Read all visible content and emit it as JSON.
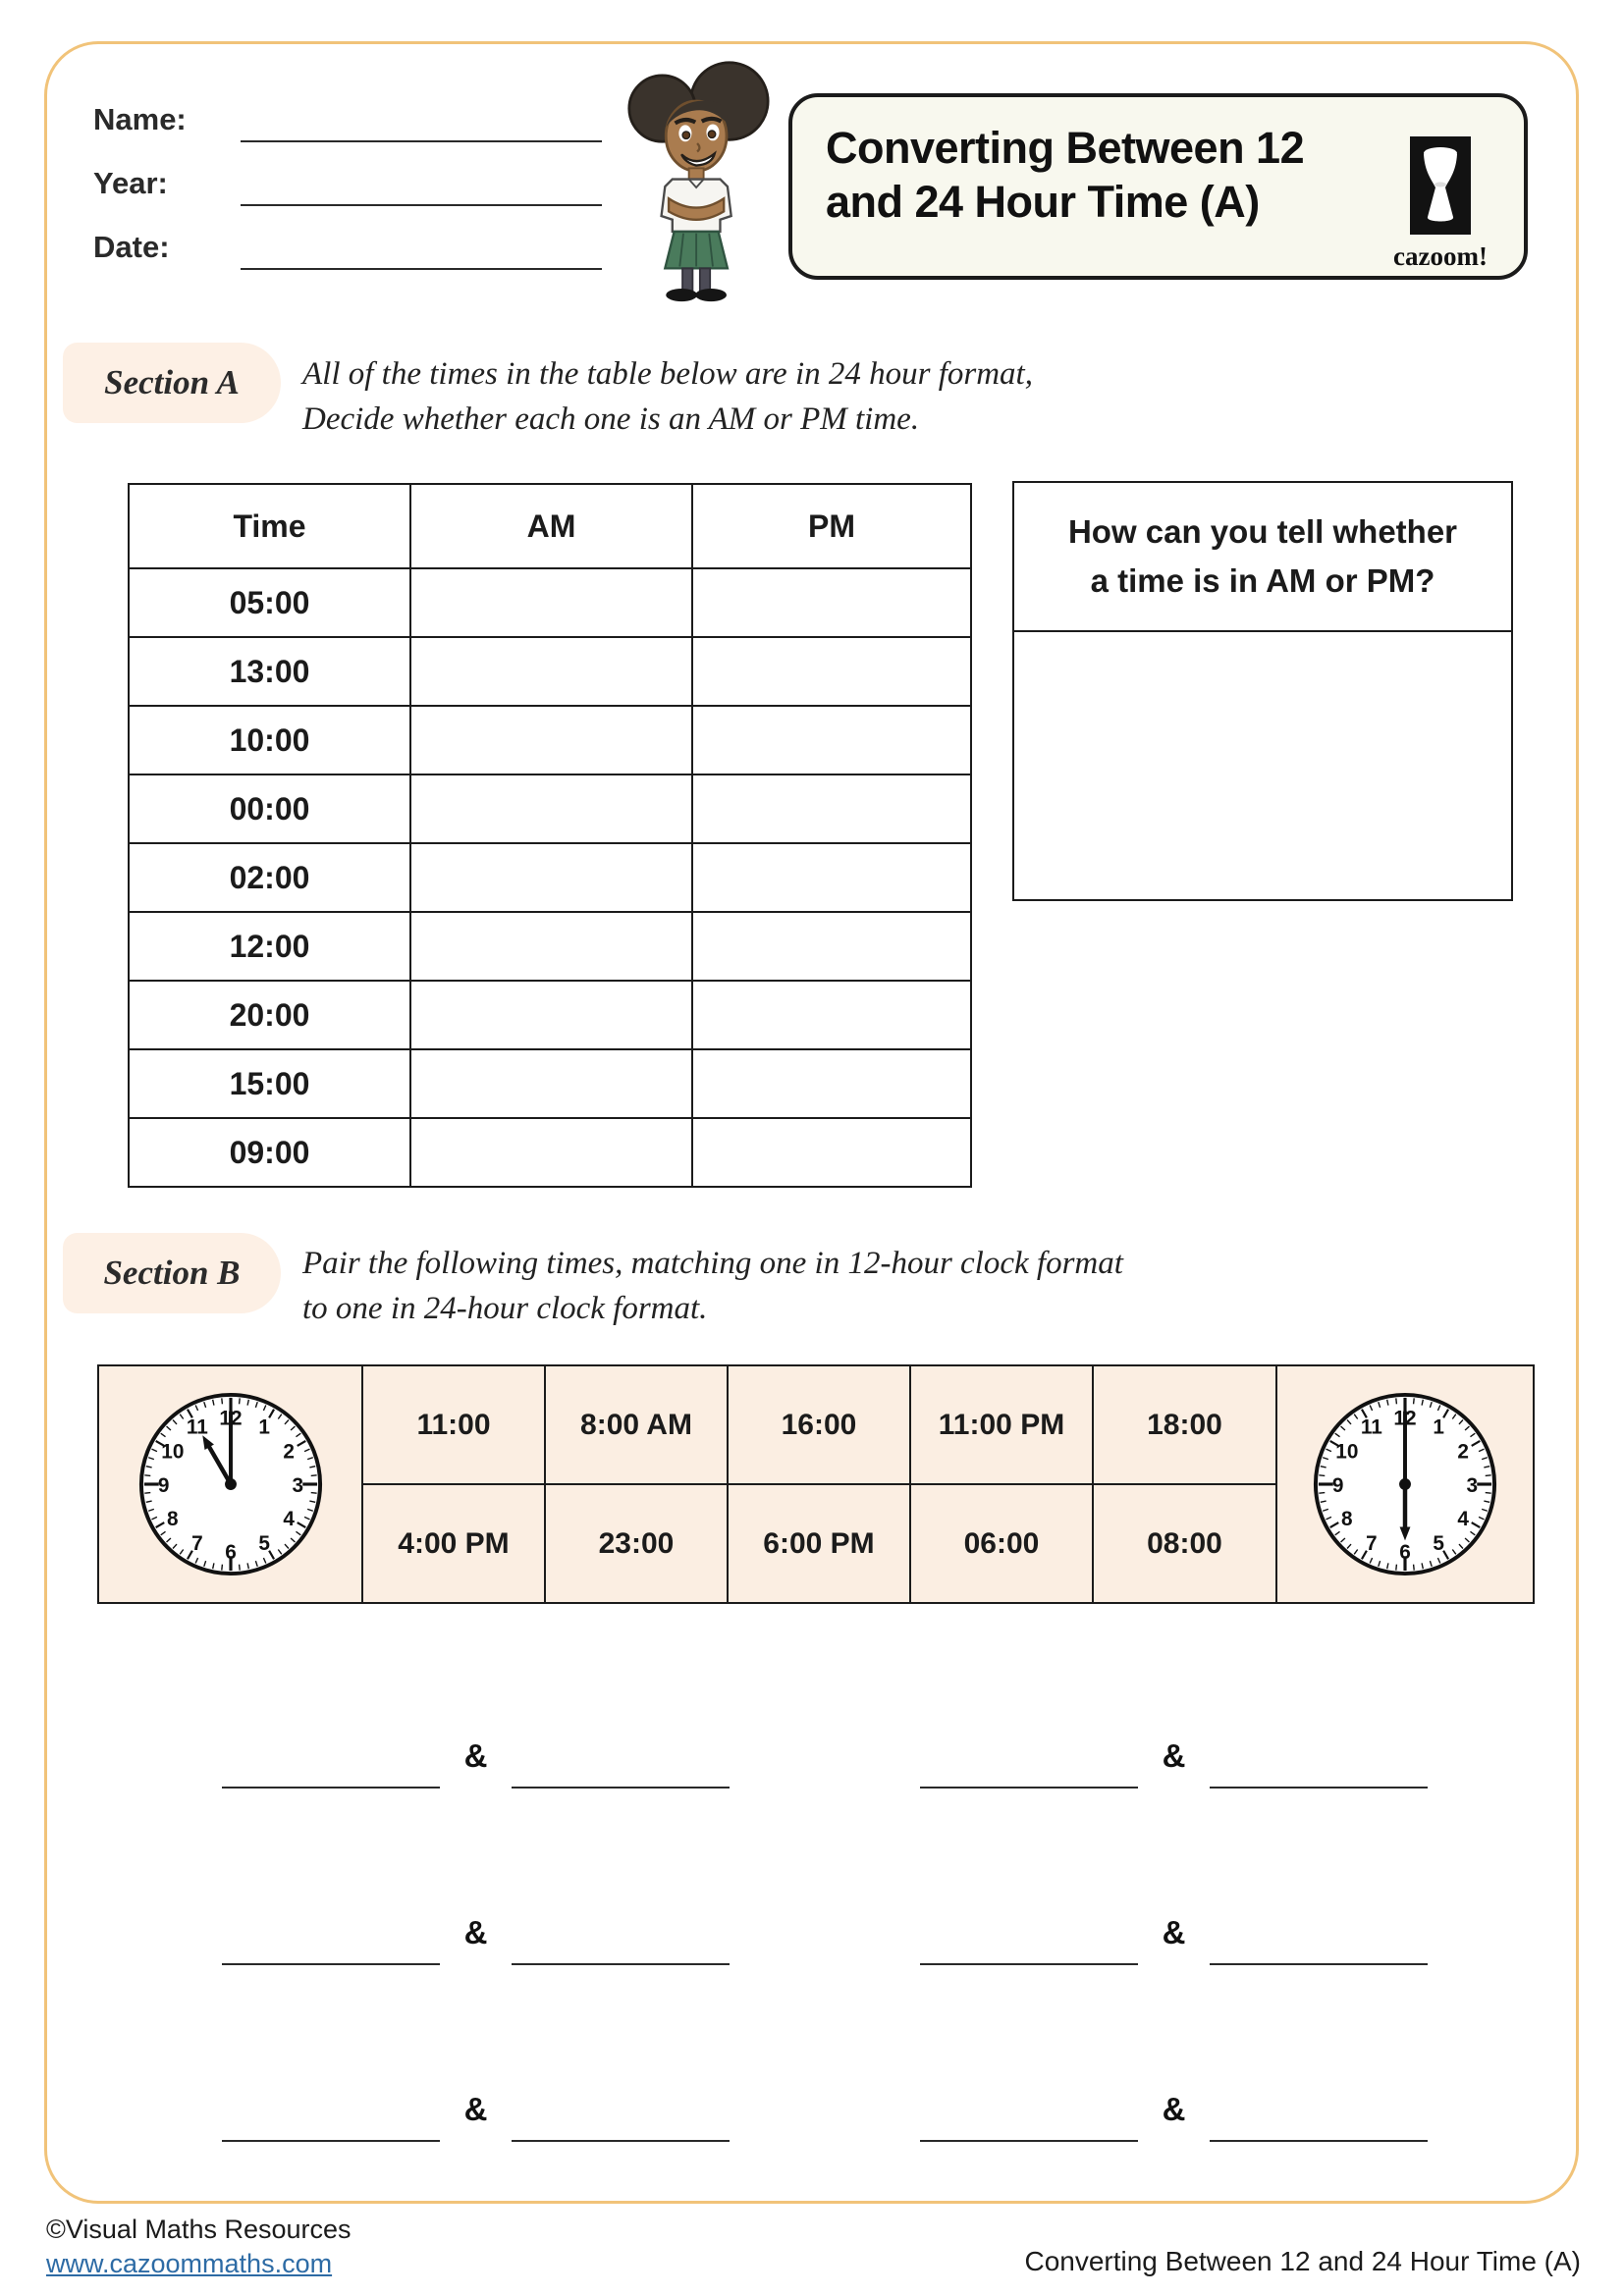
{
  "page": {
    "title_line1": "Converting Between 12",
    "title_line2": "and 24 Hour Time (A)",
    "brand": "cazoom!"
  },
  "header": {
    "name_label": "Name:",
    "year_label": "Year:",
    "date_label": "Date:"
  },
  "section_a": {
    "label": "Section A",
    "instruction_line1": "All of the times in the table below are in 24 hour format,",
    "instruction_line2": "Decide whether each one is an AM or PM time.",
    "table": {
      "headers": [
        "Time",
        "AM",
        "PM"
      ],
      "rows": [
        "05:00",
        "13:00",
        "10:00",
        "00:00",
        "02:00",
        "12:00",
        "20:00",
        "15:00",
        "09:00"
      ]
    },
    "question_box": {
      "title_line1": "How can you tell whether",
      "title_line2": "a time is in AM or PM?"
    }
  },
  "section_b": {
    "label": "Section B",
    "instruction_line1": "Pair the following times, matching one in 12-hour clock format",
    "instruction_line2": "to one in 24-hour clock format.",
    "times_row1": [
      "11:00",
      "8:00 AM",
      "16:00",
      "11:00 PM",
      "18:00"
    ],
    "times_row2": [
      "4:00 PM",
      "23:00",
      "6:00 PM",
      "06:00",
      "08:00"
    ],
    "clock_left": {
      "time": "11:00",
      "hour": 11,
      "minute": 0
    },
    "clock_right": {
      "time": "6:00",
      "hour": 6,
      "minute": 0
    },
    "clock_numerals": [
      "1",
      "2",
      "3",
      "4",
      "5",
      "6",
      "7",
      "8",
      "9",
      "10",
      "11",
      "12"
    ],
    "ampersand": "&"
  },
  "footer": {
    "copyright": "©Visual Maths Resources",
    "link": "www.cazoommaths.com",
    "doc_title": "Converting Between 12 and 24 Hour Time (A)"
  }
}
